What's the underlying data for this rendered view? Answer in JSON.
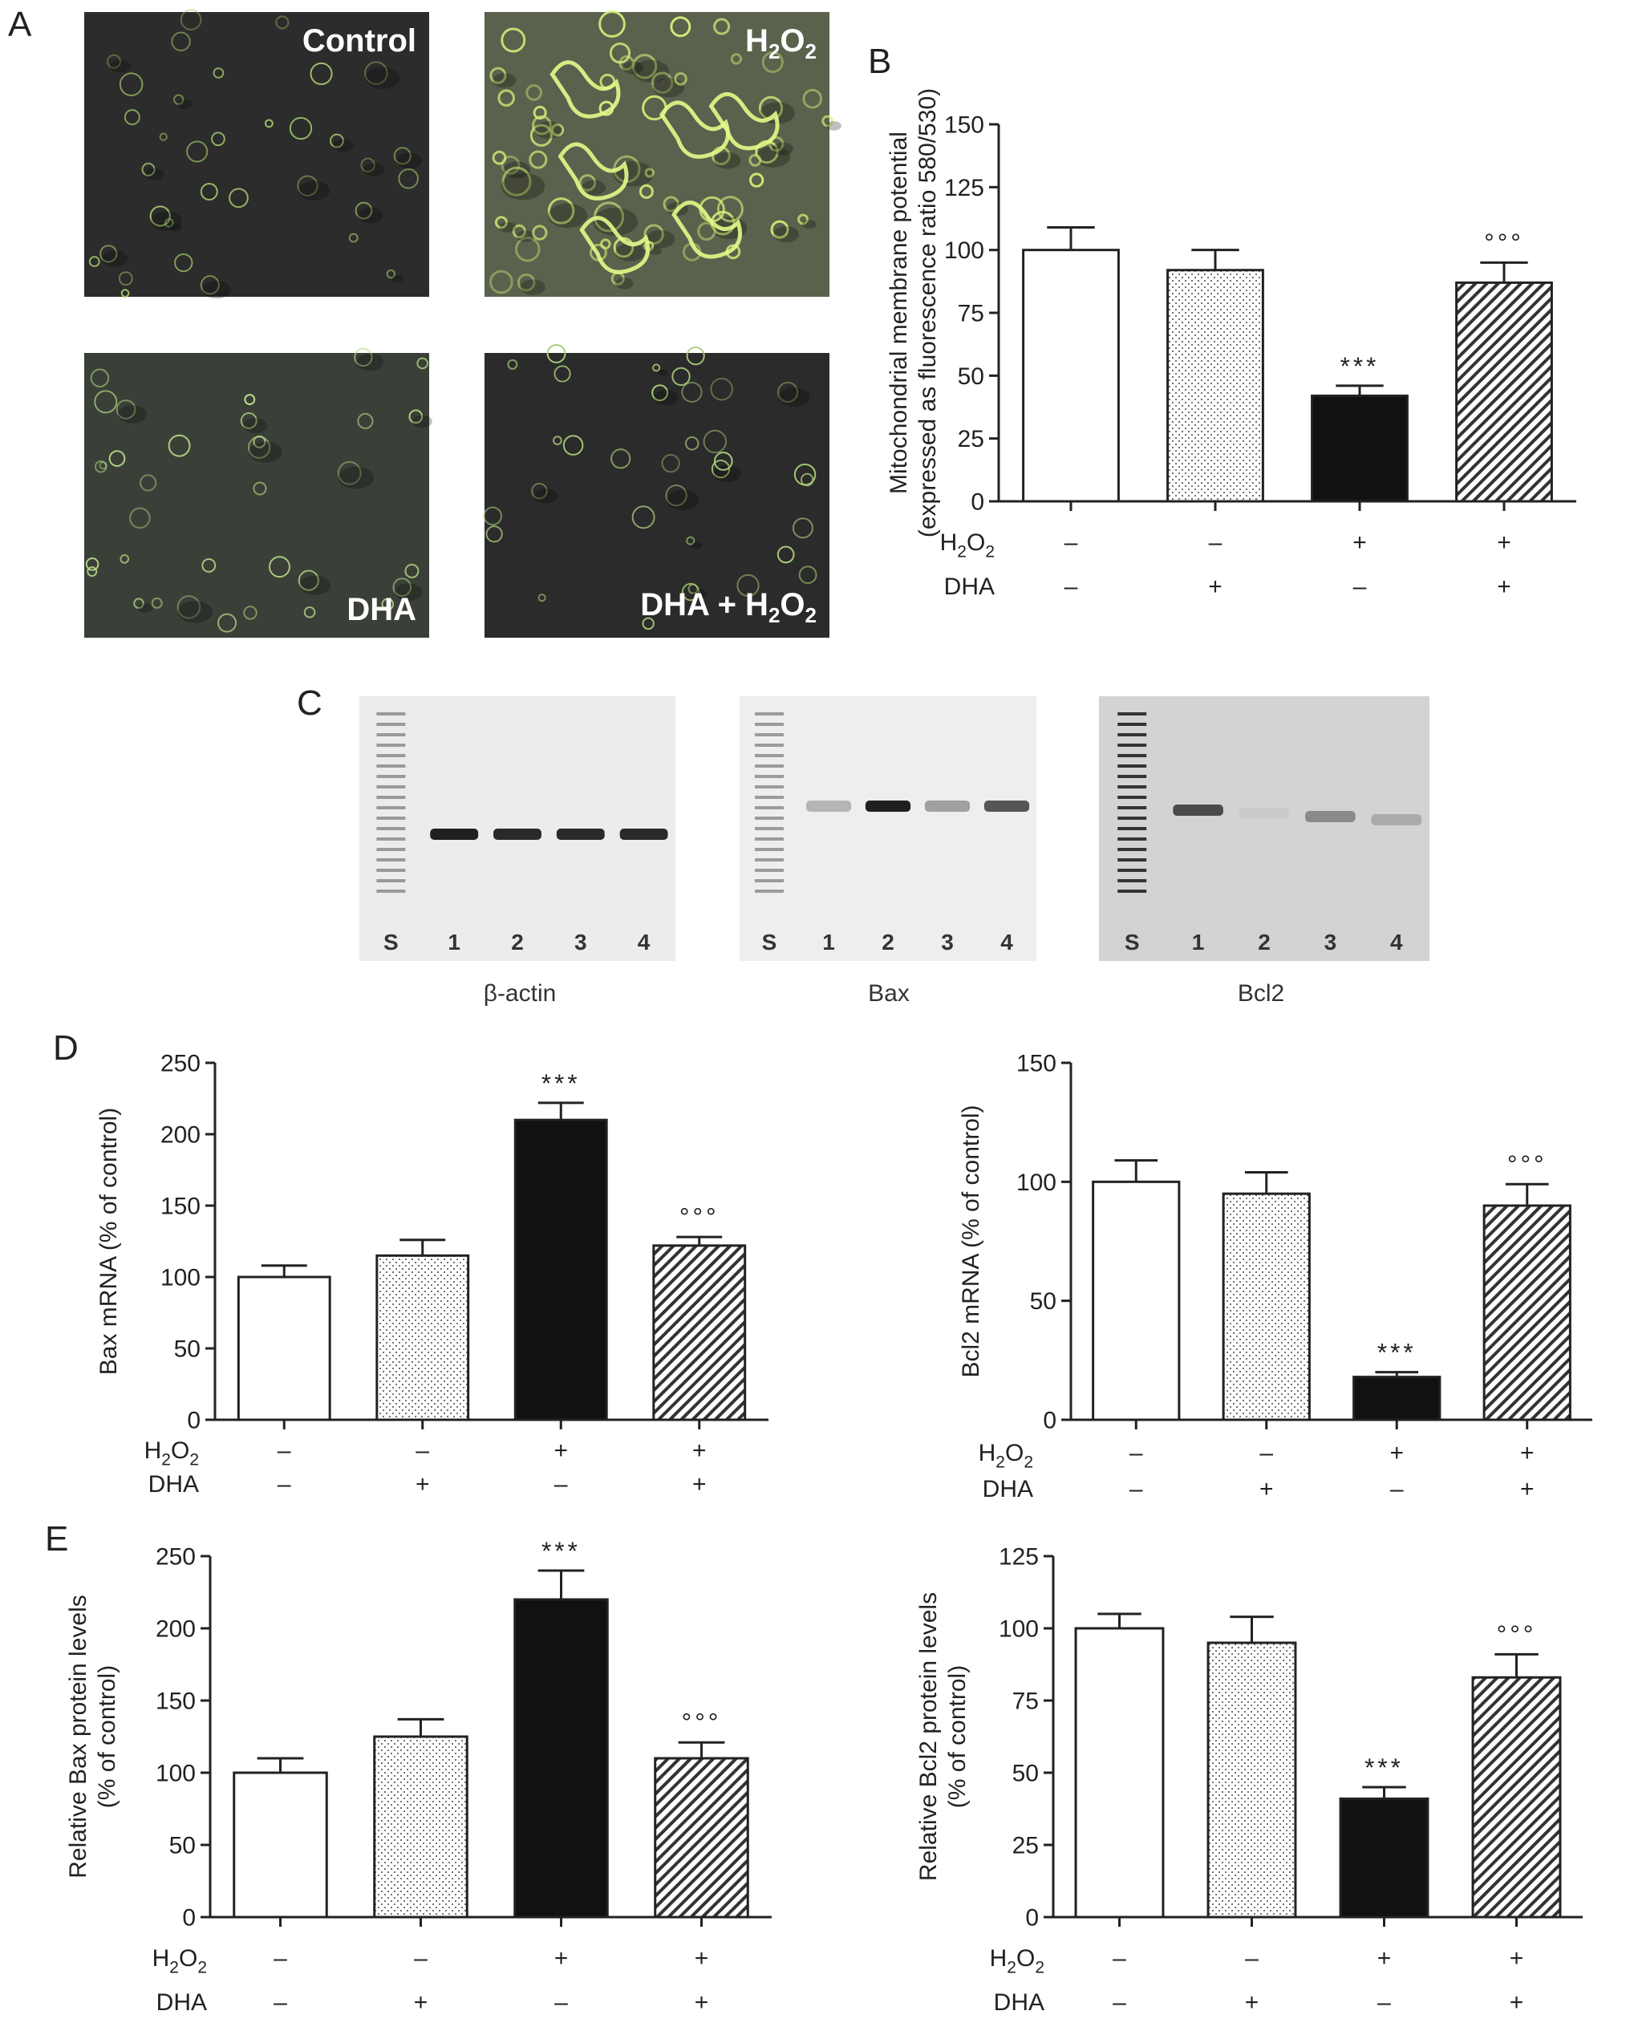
{
  "panel_labels": {
    "a": "A",
    "b": "B",
    "c": "C",
    "d": "D",
    "e": "E"
  },
  "micrographs": [
    {
      "label": "Control",
      "tone": "#2b2c2b",
      "cell_color": "#9fc16b",
      "bright": false
    },
    {
      "label": "H2O2",
      "tone": "#5a614c",
      "cell_color": "#d6f07a",
      "bright": true
    },
    {
      "label": "DHA",
      "tone": "#3a4038",
      "cell_color": "#b9dd8a",
      "bright": false
    },
    {
      "label": "DHA + H2O2",
      "tone": "#2a2b2a",
      "cell_color": "#aacc7a",
      "bright": false
    }
  ],
  "gels": [
    {
      "caption": "β-actin",
      "lanes": [
        "S",
        "1",
        "2",
        "3",
        "4"
      ],
      "background": "#ececec",
      "band_intensity": [
        0.95,
        0.9,
        0.9,
        0.9
      ]
    },
    {
      "caption": "Bax",
      "lanes": [
        "S",
        "1",
        "2",
        "3",
        "4"
      ],
      "background": "#eeeeee",
      "band_intensity": [
        0.25,
        0.95,
        0.35,
        0.7
      ]
    },
    {
      "caption": "Bcl2",
      "lanes": [
        "S",
        "1",
        "2",
        "3",
        "4"
      ],
      "background": "#d3d3d3",
      "band_intensity": [
        0.75,
        0.15,
        0.45,
        0.3
      ]
    }
  ],
  "treatment_rows": [
    {
      "label": "H2O2",
      "signs": [
        "–",
        "–",
        "+",
        "+"
      ]
    },
    {
      "label": "DHA",
      "signs": [
        "–",
        "+",
        "–",
        "+"
      ]
    }
  ],
  "chart_data": [
    {
      "id": "B",
      "type": "bar",
      "categories": [
        "Control",
        "DHA",
        "H2O2",
        "DHA + H2O2"
      ],
      "values": [
        100,
        92,
        42,
        87
      ],
      "errors": [
        9,
        8,
        4,
        8
      ],
      "annotations": [
        "",
        "",
        "***",
        "°°°"
      ],
      "ylabel_lines": [
        "Mitochondrial membrane potential",
        "(expressed as fluorescence ratio 580/530)"
      ],
      "ylim": [
        0,
        150
      ],
      "yticks": [
        0,
        25,
        50,
        75,
        100,
        125,
        150
      ],
      "fills": [
        "white",
        "dots",
        "black",
        "hatch"
      ]
    },
    {
      "id": "D-left",
      "type": "bar",
      "categories": [
        "Control",
        "DHA",
        "H2O2",
        "DHA + H2O2"
      ],
      "values": [
        100,
        115,
        210,
        122
      ],
      "errors": [
        8,
        11,
        12,
        6
      ],
      "annotations": [
        "",
        "",
        "***",
        "°°°"
      ],
      "ylabel_lines": [
        "Bax mRNA (% of control)"
      ],
      "ylim": [
        0,
        250
      ],
      "yticks": [
        0,
        50,
        100,
        150,
        200,
        250
      ],
      "fills": [
        "white",
        "dots",
        "black",
        "hatch"
      ]
    },
    {
      "id": "D-right",
      "type": "bar",
      "categories": [
        "Control",
        "DHA",
        "H2O2",
        "DHA + H2O2"
      ],
      "values": [
        100,
        95,
        18,
        90
      ],
      "errors": [
        9,
        9,
        2,
        9
      ],
      "annotations": [
        "",
        "",
        "***",
        "°°°"
      ],
      "ylabel_lines": [
        "Bcl2 mRNA (% of control)"
      ],
      "ylim": [
        0,
        150
      ],
      "yticks": [
        0,
        50,
        100,
        150
      ],
      "fills": [
        "white",
        "dots",
        "black",
        "hatch"
      ]
    },
    {
      "id": "E-left",
      "type": "bar",
      "categories": [
        "Control",
        "DHA",
        "H2O2",
        "DHA + H2O2"
      ],
      "values": [
        100,
        125,
        220,
        110
      ],
      "errors": [
        10,
        12,
        20,
        11
      ],
      "annotations": [
        "",
        "",
        "***",
        "°°°"
      ],
      "ylabel_lines": [
        "Relative Bax protein levels",
        "(% of control)"
      ],
      "ylim": [
        0,
        250
      ],
      "yticks": [
        0,
        50,
        100,
        150,
        200,
        250
      ],
      "fills": [
        "white",
        "dots",
        "black",
        "hatch"
      ]
    },
    {
      "id": "E-right",
      "type": "bar",
      "categories": [
        "Control",
        "DHA",
        "H2O2",
        "DHA + H2O2"
      ],
      "values": [
        100,
        95,
        41,
        83
      ],
      "errors": [
        5,
        9,
        4,
        8
      ],
      "annotations": [
        "",
        "",
        "***",
        "°°°"
      ],
      "ylabel_lines": [
        "Relative Bcl2 protein levels",
        "(% of control)"
      ],
      "ylim": [
        0,
        125
      ],
      "yticks": [
        0,
        25,
        50,
        75,
        100,
        125
      ],
      "fills": [
        "white",
        "dots",
        "black",
        "hatch"
      ]
    }
  ]
}
